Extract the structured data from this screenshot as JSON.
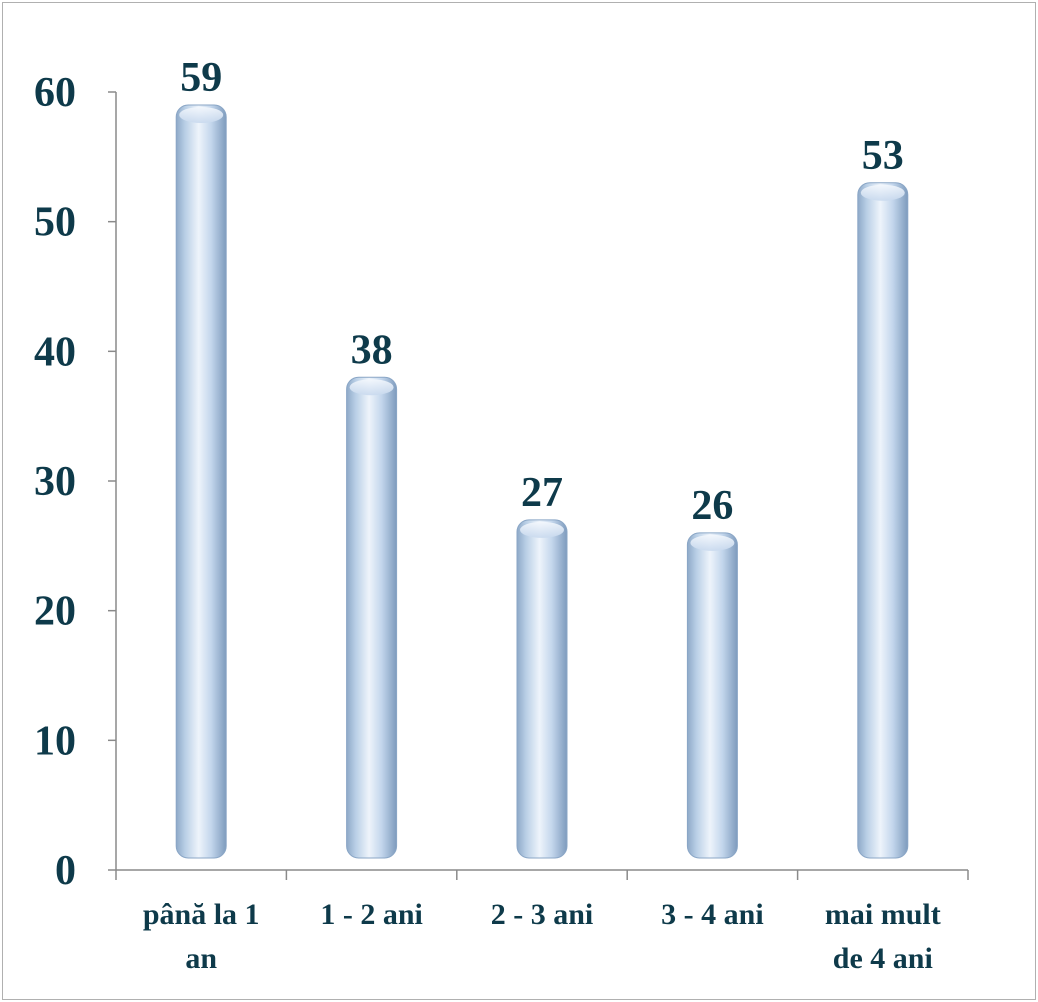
{
  "chart_data": {
    "type": "bar",
    "categories": [
      [
        "până la 1",
        "an"
      ],
      [
        "1 - 2 ani"
      ],
      [
        "2 - 3 ani"
      ],
      [
        "3 - 4 ani"
      ],
      [
        "mai mult",
        "de 4 ani"
      ]
    ],
    "values": [
      59,
      38,
      27,
      26,
      53
    ],
    "data_labels": [
      "59",
      "38",
      "27",
      "26",
      "53"
    ],
    "y_ticks": [
      0,
      10,
      20,
      30,
      40,
      50,
      60
    ],
    "ylim": [
      0,
      60
    ],
    "title": "",
    "xlabel": "",
    "ylabel": "",
    "grid": false,
    "legend": "none",
    "colors": {
      "bar_light": "#e8f0fa",
      "bar_mid": "#b6cde6",
      "bar_dark": "#7f9cbf",
      "text": "#0e3a4a",
      "axis": "#8a8a8a"
    }
  }
}
